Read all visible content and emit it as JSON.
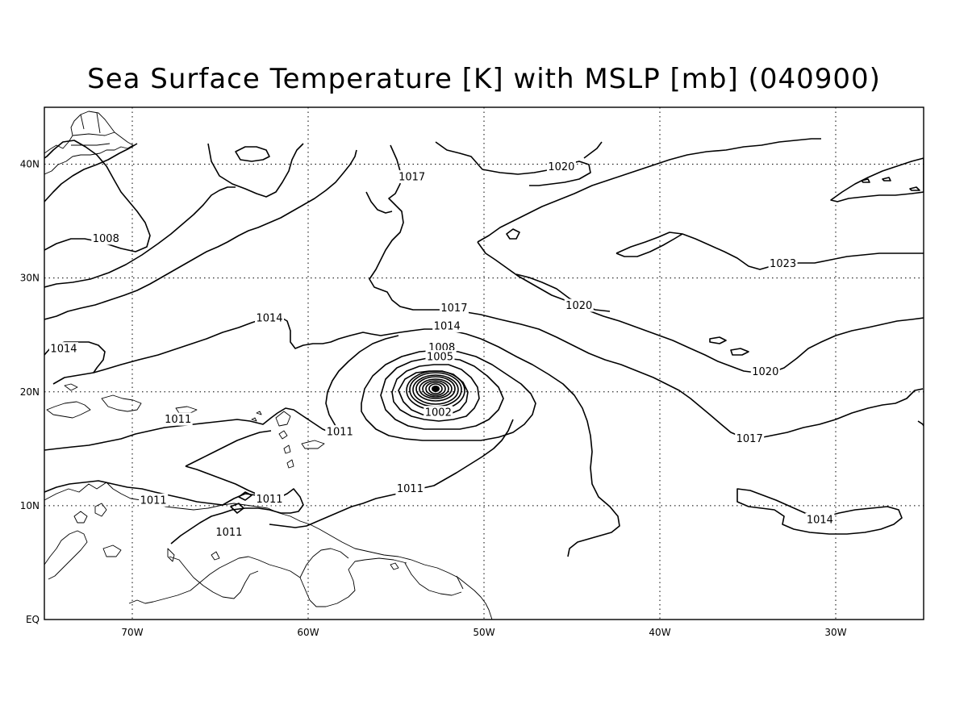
{
  "title": "Sea Surface Temperature [K] with MSLP [mb] (040900)",
  "axes": {
    "lon_ticks": [
      "70W",
      "60W",
      "50W",
      "40W",
      "30W"
    ],
    "lat_ticks": [
      "EQ",
      "10N",
      "20N",
      "30N",
      "40N"
    ]
  },
  "map": {
    "region": "North Atlantic / Caribbean",
    "lon_range_deg": [
      -75,
      -25
    ],
    "lat_range_deg": [
      0,
      45
    ],
    "grid": true,
    "variable": "MSLP contours",
    "contour_interval_mb": 3,
    "low_pressure_center": {
      "lon_deg": -52.6,
      "lat_deg": 20.3,
      "note": "tight closed isobars (hurricane)"
    },
    "contour_labels": [
      {
        "text": "1008",
        "lon": -71.5,
        "lat": 33.5
      },
      {
        "text": "1014",
        "lon": -73.9,
        "lat": 23.8
      },
      {
        "text": "1014",
        "lon": -62.2,
        "lat": 26.5
      },
      {
        "text": "1017",
        "lon": -54.1,
        "lat": 38.9
      },
      {
        "text": "1020",
        "lon": -45.6,
        "lat": 39.8
      },
      {
        "text": "1023",
        "lon": -33.0,
        "lat": 31.3
      },
      {
        "text": "1020",
        "lon": -44.6,
        "lat": 27.6
      },
      {
        "text": "1017",
        "lon": -51.7,
        "lat": 27.4
      },
      {
        "text": "1014",
        "lon": -52.1,
        "lat": 25.8
      },
      {
        "text": "1008",
        "lon": -52.4,
        "lat": 23.9
      },
      {
        "text": "1005",
        "lon": -52.5,
        "lat": 23.1
      },
      {
        "text": "1002",
        "lon": -52.6,
        "lat": 18.2
      },
      {
        "text": "1011",
        "lon": -58.2,
        "lat": 16.5
      },
      {
        "text": "1011",
        "lon": -67.4,
        "lat": 17.6
      },
      {
        "text": "1011",
        "lon": -54.2,
        "lat": 11.5
      },
      {
        "text": "1011",
        "lon": -68.8,
        "lat": 10.5
      },
      {
        "text": "1011",
        "lon": -64.5,
        "lat": 7.7
      },
      {
        "text": "1011",
        "lon": -62.2,
        "lat": 10.6
      },
      {
        "text": "1017",
        "lon": -34.9,
        "lat": 15.9
      },
      {
        "text": "1020",
        "lon": -34.0,
        "lat": 21.8
      },
      {
        "text": "1014",
        "lon": -30.9,
        "lat": 8.8
      }
    ]
  }
}
